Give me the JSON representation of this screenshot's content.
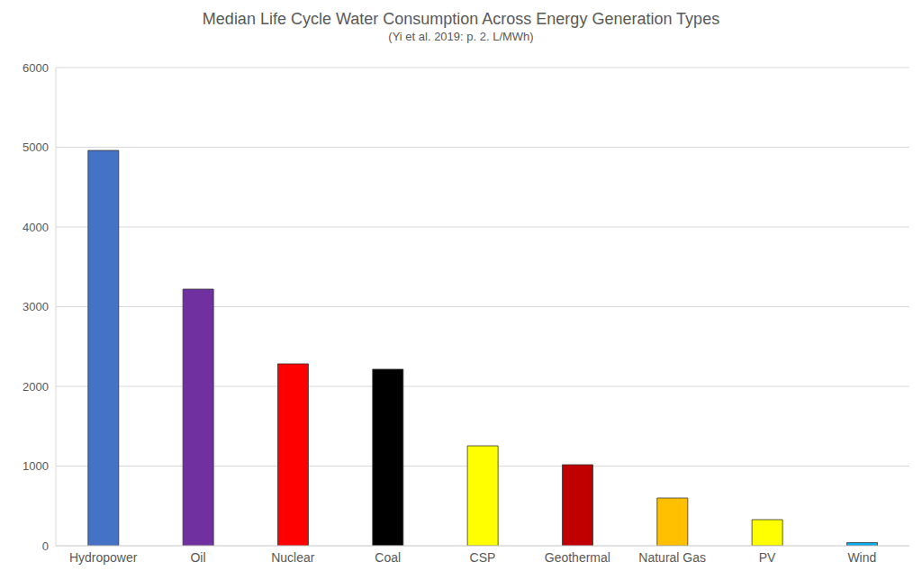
{
  "chart_data": {
    "type": "bar",
    "title": "Median Life Cycle Water Consumption Across Energy Generation Types",
    "subtitle": "(Yi et al. 2019: p. 2.  L/MWh)",
    "categories": [
      "Hydropower",
      "Oil",
      "Nuclear",
      "Coal",
      "CSP",
      "Geothermal",
      "Natural Gas",
      "PV",
      "Wind"
    ],
    "values": [
      4960,
      3220,
      2283,
      2215,
      1254,
      1017,
      599,
      328,
      40
    ],
    "colors": [
      "#4472c4",
      "#7030a0",
      "#ff0000",
      "#000000",
      "#ffff00",
      "#c00000",
      "#ffc000",
      "#ffff00",
      "#00b0f0"
    ],
    "ylim": [
      0,
      6000
    ],
    "yticks": [
      0,
      1000,
      2000,
      3000,
      4000,
      5000,
      6000
    ],
    "grid": true
  }
}
